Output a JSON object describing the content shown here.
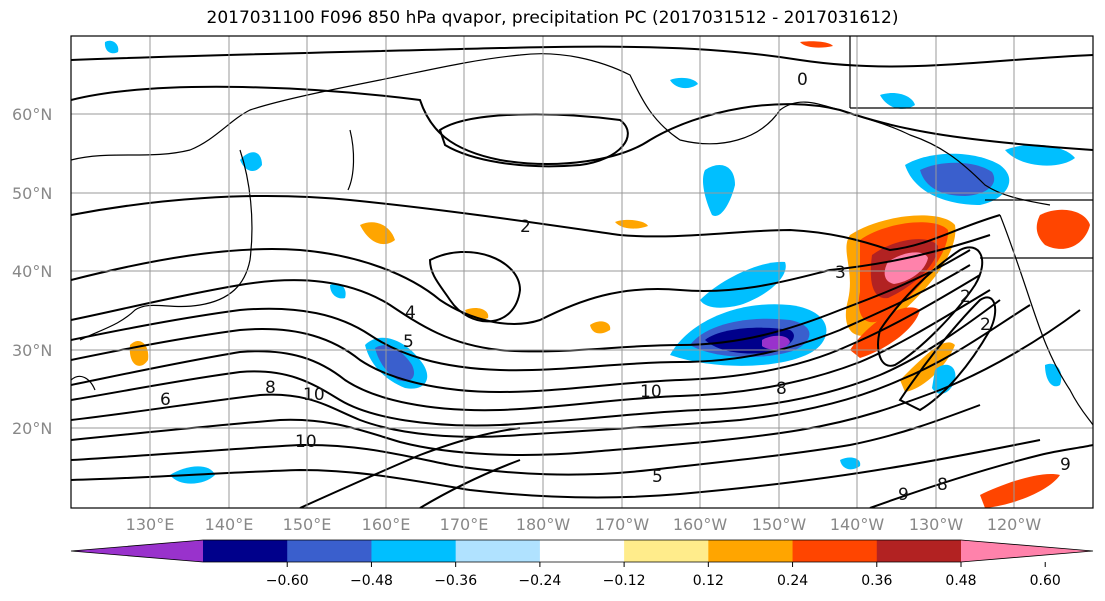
{
  "title": "2017031100 F096 850 hPa qvapor, precipitation PC (2017031512 - 2017031612)",
  "lat_labels": [
    "60°N",
    "50°N",
    "40°N",
    "30°N",
    "20°N"
  ],
  "lon_labels": [
    "130°E",
    "140°E",
    "150°E",
    "160°E",
    "170°E",
    "180°W",
    "170°W",
    "160°W",
    "150°W",
    "140°W",
    "130°W",
    "120°W"
  ],
  "colorbar": {
    "colors": [
      "#9932cc",
      "#00008b",
      "#3a5fcd",
      "#00bfff",
      "#b0e2ff",
      "#ffffff",
      "#ffec8b",
      "#ffa500",
      "#ff4500",
      "#b22222",
      "#ff82ab"
    ],
    "tick_labels": [
      "−0.60",
      "−0.48",
      "−0.36",
      "−0.24",
      "−0.12",
      "0.12",
      "0.24",
      "0.36",
      "0.48",
      "0.60"
    ]
  },
  "contour_labels": [
    "0",
    "2",
    "3",
    "4",
    "5",
    "6",
    "8",
    "10",
    "10",
    "10",
    "5",
    "8",
    "9",
    "2",
    "2",
    "8",
    "9"
  ]
}
